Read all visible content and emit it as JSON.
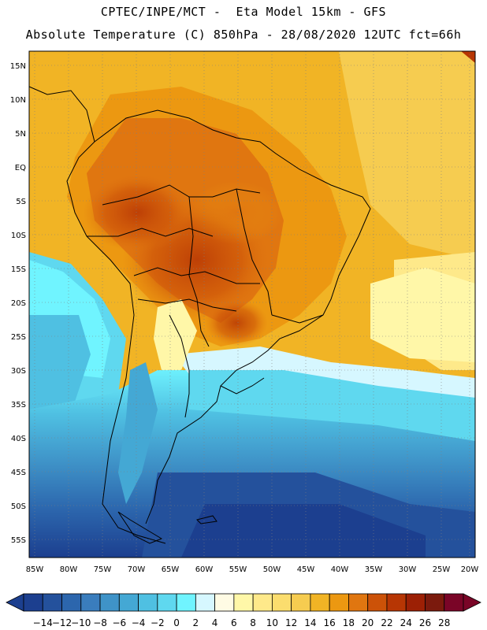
{
  "header": {
    "line1": "CPTEC/INPE/MCT -  Eta Model 15km - GFS",
    "line2": "Absolute Temperature (C) 850hPa - 28/08/2020 12UTC fct=66h"
  },
  "axes": {
    "lat_labels": [
      "15N",
      "10N",
      "5N",
      "EQ",
      "5S",
      "10S",
      "15S",
      "20S",
      "25S",
      "30S",
      "35S",
      "40S",
      "45S",
      "50S",
      "55S"
    ],
    "lon_labels": [
      "85W",
      "80W",
      "75W",
      "70W",
      "65W",
      "60W",
      "55W",
      "50W",
      "45W",
      "40W",
      "35W",
      "30W",
      "25W",
      "20W"
    ]
  },
  "colorbar": {
    "labels": [
      "-14",
      "-12",
      "-10",
      "-8",
      "-6",
      "-4",
      "-2",
      "0",
      "2",
      "4",
      "6",
      "8",
      "10",
      "12",
      "14",
      "16",
      "18",
      "20",
      "22",
      "24",
      "26",
      "28"
    ],
    "colors": [
      "#1c3f8f",
      "#24519c",
      "#2c66ad",
      "#3a7dbd",
      "#3f93c8",
      "#44a8d4",
      "#4fc0e2",
      "#5fd8ef",
      "#70f4ff",
      "#d6f7ff",
      "#fffbe4",
      "#fff7a8",
      "#fee98a",
      "#fbdd6e",
      "#f6cc50",
      "#f1b425",
      "#ec9811",
      "#e07610",
      "#cc5208",
      "#b73604",
      "#9c2005",
      "#7b1a0d",
      "#7a0527"
    ]
  }
}
